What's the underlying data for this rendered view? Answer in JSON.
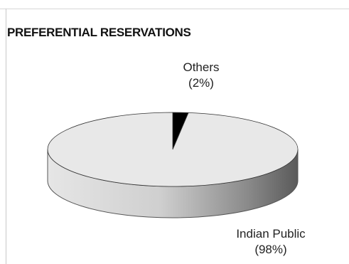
{
  "chart_data": {
    "type": "pie",
    "title": "PREFERENTIAL RESERVATIONS",
    "categories": [
      "Others",
      "Indian Public"
    ],
    "values": [
      2,
      98
    ],
    "labels": [
      {
        "name": "Others",
        "value": "(2%)"
      },
      {
        "name": "Indian Public",
        "value": "(98%)"
      }
    ],
    "colors": {
      "Others": "#000000",
      "Indian Public": "#e8e8e8"
    },
    "style": "3d"
  }
}
